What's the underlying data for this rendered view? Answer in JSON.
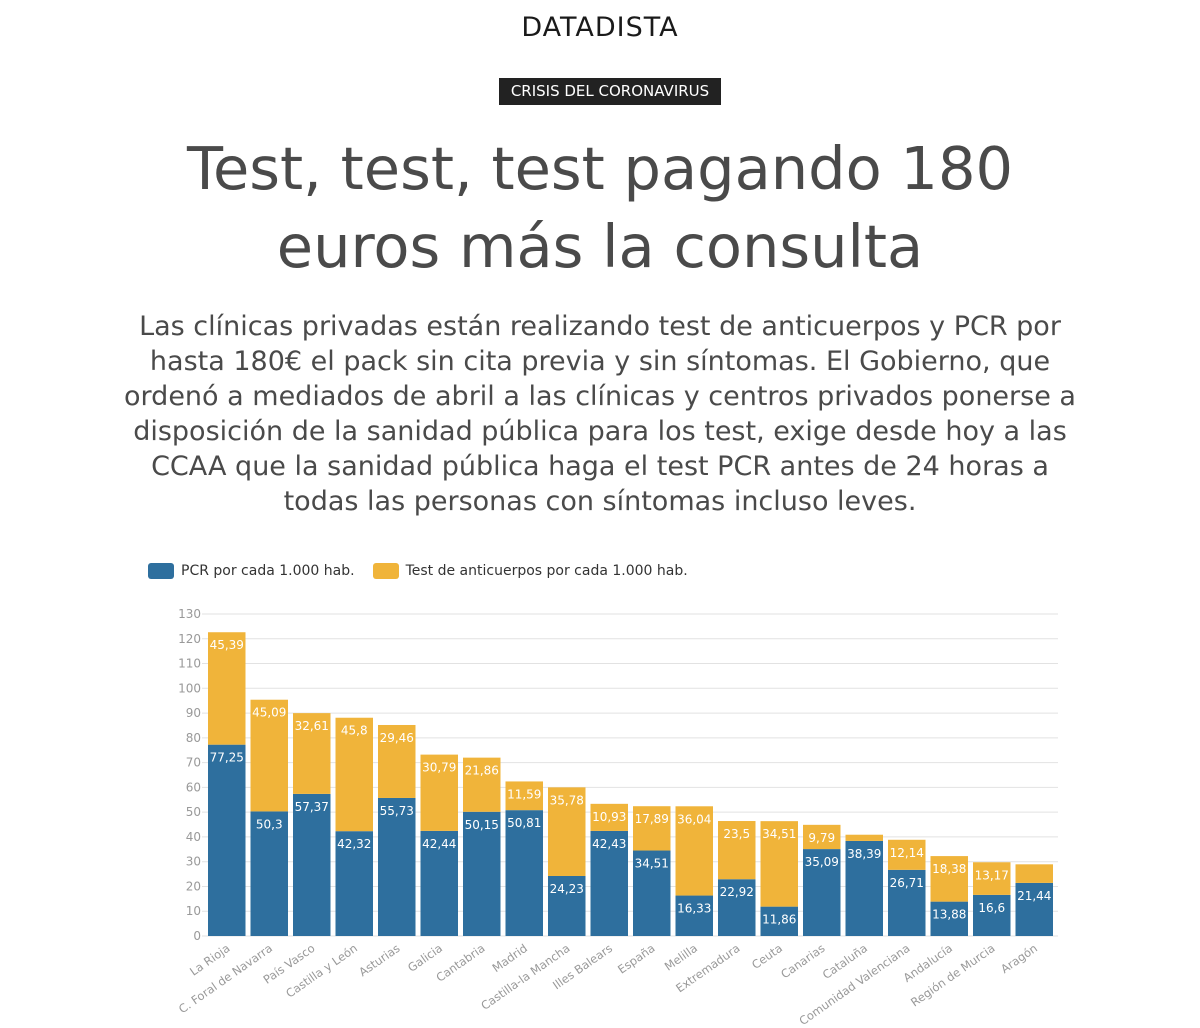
{
  "header": {
    "brand": "DATADISTA",
    "tag": "CRISIS DEL CORONAVIRUS",
    "headline": "Test, test, test pagando 180 euros más la consulta",
    "lede": "Las clínicas privadas están realizando test de anticuerpos y PCR por hasta 180€ el pack sin cita previa y sin síntomas. El Gobierno, que ordenó a mediados de abril a las clínicas y centros privados ponerse a disposición de la sanidad pública para los test, exige desde hoy a las CCAA que la sanidad pública haga el test PCR antes de 24 horas a todas las personas con síntomas incluso leves."
  },
  "colors": {
    "pcr": "#2e6f9e",
    "antibody": "#f0b43a",
    "grid": "#e2e2e2",
    "tick": "#999999"
  },
  "chart_data": {
    "type": "bar",
    "stacked": true,
    "title": "",
    "xlabel": "",
    "ylabel": "",
    "ylim": [
      0,
      130
    ],
    "yticks": [
      0,
      10,
      20,
      30,
      40,
      50,
      60,
      70,
      80,
      90,
      100,
      110,
      120,
      130
    ],
    "grid": true,
    "legend_position": "top-left",
    "categories": [
      "La Rioja",
      "C. Foral de Navarra",
      "País Vasco",
      "Castilla y León",
      "Asturias",
      "Galicia",
      "Cantabria",
      "Madrid",
      "Castilla-la Mancha",
      "Illes Balears",
      "España",
      "Melilla",
      "Extremadura",
      "Ceuta",
      "Canarias",
      "Cataluña",
      "Comunidad Valenciana",
      "Andalucía",
      "Región de Murcia",
      "Aragón"
    ],
    "series": [
      {
        "name": "PCR por cada 1.000 hab.",
        "values": [
          77.25,
          50.3,
          57.37,
          42.32,
          55.73,
          42.44,
          50.15,
          50.81,
          24.23,
          42.43,
          34.51,
          16.33,
          22.92,
          11.86,
          35.09,
          38.39,
          26.71,
          13.88,
          16.6,
          21.44
        ],
        "labels": [
          "77,25",
          "50,3",
          "57,37",
          "42,32",
          "55,73",
          "42,44",
          "50,15",
          "50,81",
          "24,23",
          "42,43",
          "34,51",
          "16,33",
          "22,92",
          "11,86",
          "35,09",
          "38,39",
          "26,71",
          "13,88",
          "16,6",
          "21,44"
        ]
      },
      {
        "name": "Test de anticuerpos por cada 1.000 hab.",
        "values": [
          45.39,
          45.09,
          32.61,
          45.8,
          29.46,
          30.79,
          21.86,
          11.59,
          35.78,
          10.93,
          17.89,
          36.04,
          23.5,
          34.51,
          9.79,
          2.5,
          12.14,
          18.38,
          13.17,
          7.5
        ],
        "labels": [
          "45,39",
          "45,09",
          "32,61",
          "45,8",
          "29,46",
          "30,79",
          "21,86",
          "11,59",
          "35,78",
          "10,93",
          "17,89",
          "36,04",
          "23,5",
          "34,51",
          "9,79",
          "",
          "12,14",
          "18,38",
          "13,17",
          ""
        ]
      }
    ]
  }
}
